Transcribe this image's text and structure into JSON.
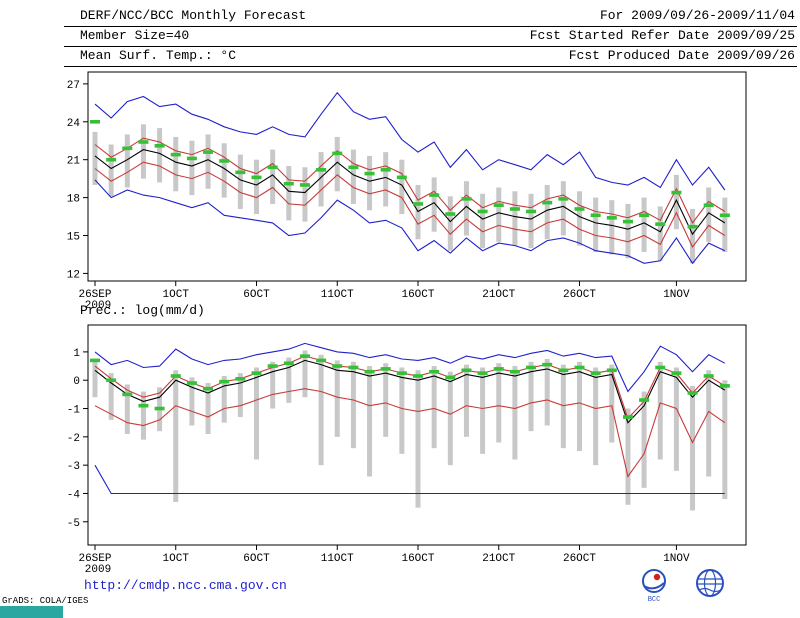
{
  "header": {
    "left": [
      "DERF/NCC/BCC Monthly Forecast",
      "Member Size=40",
      "Mean Surf. Temp.: °C"
    ],
    "right": [
      "For 2009/09/26-2009/11/04",
      "Fcst Started Refer Date 2009/09/25",
      "Fcst Produced Date 2009/09/26"
    ]
  },
  "footer": {
    "url": "http://cmdp.ncc.cma.gov.cn",
    "credit": "GrADS: COLA/IGES",
    "logo_labels": [
      "BCC"
    ]
  },
  "colors": {
    "blue": "#2020cc",
    "red": "#c93a3a",
    "black": "#000000",
    "green": "#35c035",
    "gray": "#c8c8c8",
    "teal": "#2aa7a0",
    "url_blue": "#2323cc"
  },
  "chart_data": [
    {
      "type": "line",
      "title": "Mean Surf. Temp.: °C",
      "ylabel": "°C",
      "n_days": 40,
      "ylim": [
        11.4,
        27.94
      ],
      "yticks": [
        27,
        24,
        21,
        18,
        15,
        12
      ],
      "x_ticks": [
        {
          "label": "26SEP",
          "sub": "2009",
          "day": 0
        },
        {
          "label": "1OCT",
          "day": 5
        },
        {
          "label": "6OCT",
          "day": 10
        },
        {
          "label": "11OCT",
          "day": 15
        },
        {
          "label": "16OCT",
          "day": 20
        },
        {
          "label": "21OCT",
          "day": 25
        },
        {
          "label": "26OCT",
          "day": 30
        },
        {
          "label": "1NOV",
          "day": 36
        }
      ],
      "series": [
        {
          "name": "ensemble-max",
          "color": "blue",
          "values": [
            25.4,
            24.3,
            25.6,
            26.0,
            25.2,
            25.4,
            24.6,
            24.2,
            23.6,
            23.2,
            23.0,
            23.6,
            23.0,
            22.8,
            24.6,
            26.3,
            24.8,
            24.2,
            24.4,
            22.6,
            21.6,
            22.4,
            20.4,
            21.8,
            20.2,
            21.0,
            20.6,
            20.2,
            21.4,
            20.6,
            21.6,
            19.6,
            19.2,
            19.0,
            19.6,
            18.8,
            21.0,
            19.0,
            20.4,
            18.6
          ]
        },
        {
          "name": "upper-spread",
          "color": "red",
          "values": [
            22.2,
            21.2,
            21.9,
            22.7,
            22.4,
            21.7,
            21.4,
            21.9,
            21.2,
            20.3,
            19.9,
            20.7,
            19.4,
            19.3,
            20.5,
            21.7,
            20.7,
            20.2,
            20.5,
            19.9,
            17.8,
            18.5,
            17.0,
            18.2,
            17.2,
            17.7,
            17.4,
            17.2,
            17.9,
            18.2,
            17.4,
            16.9,
            16.7,
            16.4,
            16.9,
            16.2,
            18.7,
            16.0,
            17.7,
            16.9
          ]
        },
        {
          "name": "ensemble-mean",
          "color": "black",
          "values": [
            21.3,
            20.3,
            21.0,
            21.8,
            21.5,
            20.8,
            20.5,
            21.0,
            20.3,
            19.4,
            19.0,
            19.8,
            18.5,
            18.4,
            19.6,
            20.8,
            19.8,
            19.3,
            19.6,
            19.0,
            16.9,
            17.6,
            16.1,
            17.3,
            16.3,
            16.8,
            16.5,
            16.3,
            17.0,
            17.3,
            16.5,
            16.0,
            15.8,
            15.5,
            16.0,
            15.3,
            17.8,
            15.1,
            16.8,
            16.0
          ]
        },
        {
          "name": "lower-spread",
          "color": "red",
          "values": [
            20.3,
            19.3,
            20.0,
            20.8,
            20.5,
            19.8,
            19.5,
            20.0,
            19.3,
            18.4,
            18.0,
            18.8,
            17.5,
            17.4,
            18.6,
            19.8,
            18.8,
            18.3,
            18.6,
            18.0,
            15.9,
            16.6,
            15.1,
            16.3,
            15.3,
            15.8,
            15.5,
            15.3,
            16.0,
            16.3,
            15.5,
            15.0,
            14.8,
            14.5,
            15.0,
            14.3,
            16.8,
            14.1,
            15.8,
            15.0
          ]
        },
        {
          "name": "ensemble-min",
          "color": "blue",
          "values": [
            19.4,
            18.0,
            18.6,
            18.2,
            18.0,
            17.6,
            17.2,
            17.6,
            16.6,
            16.4,
            16.2,
            16.0,
            15.0,
            15.2,
            16.4,
            17.8,
            17.0,
            16.0,
            16.2,
            15.6,
            13.8,
            14.6,
            13.6,
            14.8,
            13.8,
            14.4,
            14.2,
            13.8,
            14.6,
            14.8,
            14.4,
            13.8,
            13.6,
            13.4,
            12.8,
            13.0,
            14.8,
            12.8,
            14.4,
            13.8
          ]
        }
      ],
      "dash_series": {
        "name": "ensemble-mean-highlight",
        "color": "green",
        "values": [
          24.0,
          21.0,
          21.9,
          22.4,
          22.1,
          21.4,
          21.1,
          21.6,
          20.9,
          20.0,
          19.6,
          20.4,
          19.1,
          19.0,
          20.2,
          21.5,
          20.4,
          19.9,
          20.2,
          19.6,
          17.5,
          18.2,
          16.7,
          17.9,
          16.9,
          17.4,
          17.1,
          16.9,
          17.6,
          17.9,
          17.1,
          16.6,
          16.4,
          16.1,
          16.6,
          15.9,
          18.4,
          15.7,
          17.4,
          16.6
        ]
      },
      "bars": {
        "name": "member-spread",
        "color": "gray",
        "low": [
          19.0,
          18.1,
          18.8,
          19.5,
          19.2,
          18.5,
          18.2,
          18.7,
          18.0,
          17.1,
          16.7,
          17.5,
          16.2,
          16.1,
          17.3,
          18.5,
          17.5,
          17.0,
          17.3,
          16.7,
          14.7,
          15.3,
          13.8,
          15.0,
          14.0,
          14.5,
          14.2,
          14.0,
          14.7,
          15.0,
          14.2,
          13.7,
          13.5,
          13.2,
          13.7,
          13.0,
          15.5,
          12.8,
          14.5,
          13.7
        ],
        "high": [
          23.2,
          22.2,
          23.0,
          23.8,
          23.5,
          22.8,
          22.5,
          23.0,
          22.3,
          21.4,
          21.0,
          21.8,
          20.5,
          20.4,
          21.6,
          22.8,
          21.8,
          21.3,
          21.6,
          21.0,
          19.0,
          19.6,
          18.1,
          19.3,
          18.3,
          18.8,
          18.5,
          18.3,
          19.0,
          19.3,
          18.5,
          18.0,
          17.8,
          17.5,
          18.0,
          17.3,
          19.8,
          17.1,
          18.8,
          18.0
        ]
      }
    },
    {
      "type": "line",
      "title": "Prec.: log(mm/d)",
      "ylabel": "log(mm/d)",
      "n_days": 40,
      "ylim": [
        -5.82,
        1.95
      ],
      "yticks": [
        1,
        0,
        -1,
        -2,
        -3,
        -4,
        -5
      ],
      "x_ticks": [
        {
          "label": "26SEP",
          "sub": "2009",
          "day": 0
        },
        {
          "label": "1OCT",
          "day": 5
        },
        {
          "label": "6OCT",
          "day": 10
        },
        {
          "label": "11OCT",
          "day": 15
        },
        {
          "label": "16OCT",
          "day": 20
        },
        {
          "label": "21OCT",
          "day": 25
        },
        {
          "label": "26OCT",
          "day": 30
        },
        {
          "label": "1NOV",
          "day": 36
        }
      ],
      "series": [
        {
          "name": "ensemble-max",
          "color": "blue",
          "values": [
            1.0,
            0.55,
            0.7,
            0.45,
            0.5,
            1.1,
            0.75,
            0.55,
            0.7,
            0.75,
            0.9,
            1.0,
            1.1,
            1.3,
            1.15,
            1.0,
            0.95,
            0.8,
            0.9,
            0.75,
            0.7,
            0.8,
            0.6,
            0.85,
            0.75,
            0.9,
            0.8,
            0.95,
            1.05,
            0.85,
            0.95,
            0.8,
            0.85,
            -0.4,
            0.3,
            1.2,
            0.9,
            0.3,
            0.9,
            0.6
          ]
        },
        {
          "name": "upper-spread",
          "color": "red",
          "values": [
            0.5,
            0.05,
            -0.35,
            -0.6,
            -0.45,
            0.15,
            -0.1,
            -0.3,
            -0.05,
            0.05,
            0.25,
            0.45,
            0.6,
            0.85,
            0.7,
            0.5,
            0.45,
            0.3,
            0.4,
            0.25,
            0.15,
            0.3,
            0.1,
            0.35,
            0.25,
            0.4,
            0.3,
            0.45,
            0.55,
            0.35,
            0.45,
            0.25,
            0.35,
            -1.35,
            -0.75,
            0.45,
            0.25,
            -0.45,
            0.15,
            -0.2
          ]
        },
        {
          "name": "ensemble-mean",
          "color": "black",
          "values": [
            0.35,
            -0.1,
            -0.5,
            -0.75,
            -0.6,
            0.0,
            -0.25,
            -0.45,
            -0.2,
            -0.1,
            0.1,
            0.3,
            0.45,
            0.7,
            0.55,
            0.35,
            0.3,
            0.15,
            0.25,
            0.1,
            0.0,
            0.15,
            -0.05,
            0.2,
            0.1,
            0.25,
            0.15,
            0.3,
            0.4,
            0.2,
            0.3,
            0.1,
            0.2,
            -1.5,
            -0.9,
            0.3,
            0.1,
            -0.6,
            0.0,
            -0.35
          ]
        },
        {
          "name": "lower-spread",
          "color": "red",
          "values": [
            -0.9,
            -1.2,
            -1.5,
            -1.6,
            -1.4,
            -0.9,
            -1.1,
            -1.3,
            -1.0,
            -0.9,
            -0.7,
            -0.5,
            -0.4,
            -0.3,
            -0.4,
            -0.6,
            -0.7,
            -0.9,
            -0.8,
            -1.0,
            -1.1,
            -1.0,
            -1.2,
            -0.9,
            -1.0,
            -0.9,
            -1.0,
            -0.8,
            -0.7,
            -0.9,
            -0.8,
            -1.0,
            -0.9,
            -3.4,
            -2.6,
            -0.8,
            -1.0,
            -2.2,
            -1.1,
            -1.5
          ]
        },
        {
          "name": "ensemble-min",
          "color": "blue",
          "values": [
            -3.0,
            -4.0,
            -4.0,
            -4.0,
            -4.0,
            -4.0,
            -4.0,
            -4.0,
            -4.0,
            -4.0,
            -4.0,
            -4.0,
            -4.0,
            -4.0,
            -4.0,
            -4.0,
            -4.0,
            -4.0,
            -4.0,
            -4.0,
            -4.0,
            -4.0,
            -4.0,
            -4.0,
            -4.0,
            -4.0,
            -4.0,
            -4.0,
            -4.0,
            -4.0,
            -4.0,
            -4.0,
            -4.0,
            -4.0,
            -4.0,
            -4.0,
            -4.0,
            -4.0,
            -4.0,
            -4.0
          ]
        }
      ],
      "dash_series": {
        "name": "ensemble-mean-highlight",
        "color": "green",
        "values": [
          0.7,
          0.0,
          -0.5,
          -0.9,
          -1.0,
          0.15,
          -0.1,
          -0.3,
          -0.05,
          0.05,
          0.25,
          0.5,
          0.6,
          0.85,
          0.7,
          0.5,
          0.45,
          0.3,
          0.4,
          0.25,
          0.15,
          0.3,
          0.1,
          0.35,
          0.25,
          0.4,
          0.3,
          0.45,
          0.55,
          0.35,
          0.45,
          0.25,
          0.35,
          -1.3,
          -0.7,
          0.45,
          0.25,
          -0.45,
          0.15,
          -0.2
        ]
      },
      "bars": {
        "name": "member-spread",
        "color": "gray",
        "low": [
          -0.6,
          -1.4,
          -1.9,
          -2.1,
          -1.8,
          -4.3,
          -1.6,
          -1.9,
          -1.5,
          -1.3,
          -2.8,
          -1.0,
          -0.8,
          -0.6,
          -3.0,
          -2.0,
          -2.4,
          -3.4,
          -2.0,
          -2.6,
          -4.5,
          -2.4,
          -3.0,
          -2.0,
          -2.6,
          -2.2,
          -2.8,
          -1.8,
          -1.6,
          -2.4,
          -2.5,
          -3.0,
          -2.2,
          -4.4,
          -3.8,
          -2.8,
          -3.2,
          -4.6,
          -3.4,
          -4.2
        ],
        "high": [
          0.7,
          0.25,
          -0.15,
          -0.4,
          -0.25,
          0.35,
          0.1,
          -0.1,
          0.15,
          0.25,
          0.45,
          0.65,
          0.8,
          1.05,
          0.9,
          0.7,
          0.65,
          0.5,
          0.6,
          0.45,
          0.35,
          0.5,
          0.3,
          0.55,
          0.45,
          0.6,
          0.5,
          0.65,
          0.75,
          0.55,
          0.65,
          0.45,
          0.55,
          -1.0,
          -0.4,
          0.65,
          0.45,
          -0.2,
          0.35,
          0.0
        ]
      }
    }
  ]
}
